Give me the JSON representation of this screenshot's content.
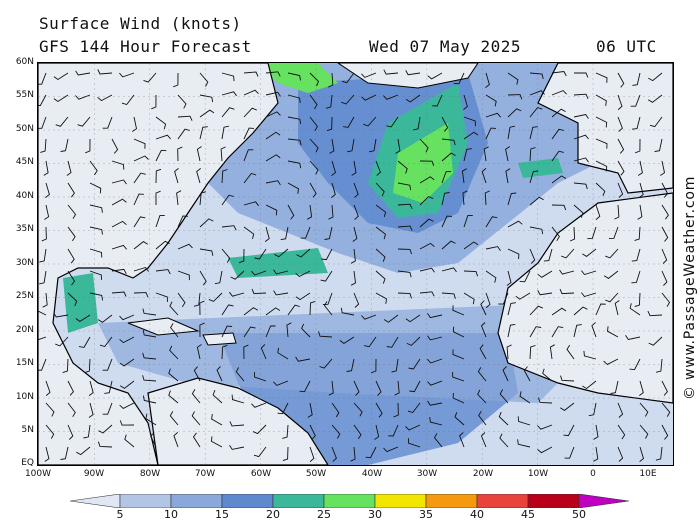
{
  "header": {
    "title": "Surface Wind (knots)",
    "model": "GFS 144 Hour Forecast",
    "date": "Wed 07 May 2025",
    "time": "06 UTC"
  },
  "credit": "© www.PassageWeather.com",
  "axes": {
    "lat_labels": [
      "60N",
      "55N",
      "50N",
      "45N",
      "40N",
      "35N",
      "30N",
      "25N",
      "20N",
      "15N",
      "10N",
      "5N",
      "EQ"
    ],
    "lon_labels": [
      "100W",
      "90W",
      "80W",
      "70W",
      "60W",
      "50W",
      "40W",
      "30W",
      "20W",
      "10W",
      "0",
      "10E"
    ]
  },
  "legend": {
    "labels": [
      "5",
      "10",
      "15",
      "20",
      "25",
      "30",
      "35",
      "40",
      "45",
      "50"
    ],
    "colors": [
      "#dfe6f4",
      "#b2c5e4",
      "#8aa8da",
      "#5e89cf",
      "#3bb89a",
      "#66e260",
      "#f2e600",
      "#f59a10",
      "#e8433c",
      "#b8001a",
      "#c000c0"
    ]
  }
}
